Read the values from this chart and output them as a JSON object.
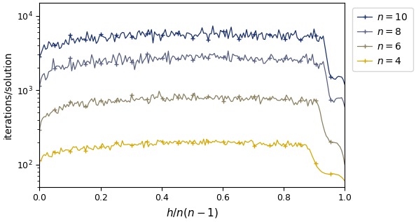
{
  "title": "",
  "xlabel": "$h/n(n-1)$",
  "ylabel": "iterations/solution",
  "xlim": [
    0.0,
    1.0
  ],
  "ylim_log": [
    50,
    15000
  ],
  "colors": {
    "n10": "#19306b",
    "n8": "#585f80",
    "n6": "#8a8060",
    "n4": "#d4a800"
  },
  "legend_labels": [
    "$n = 10$",
    "$n = 8$",
    "$n = 6$",
    "$n = 4$"
  ],
  "figsize": [
    5.94,
    3.18
  ],
  "dpi": 100,
  "seed": 42
}
